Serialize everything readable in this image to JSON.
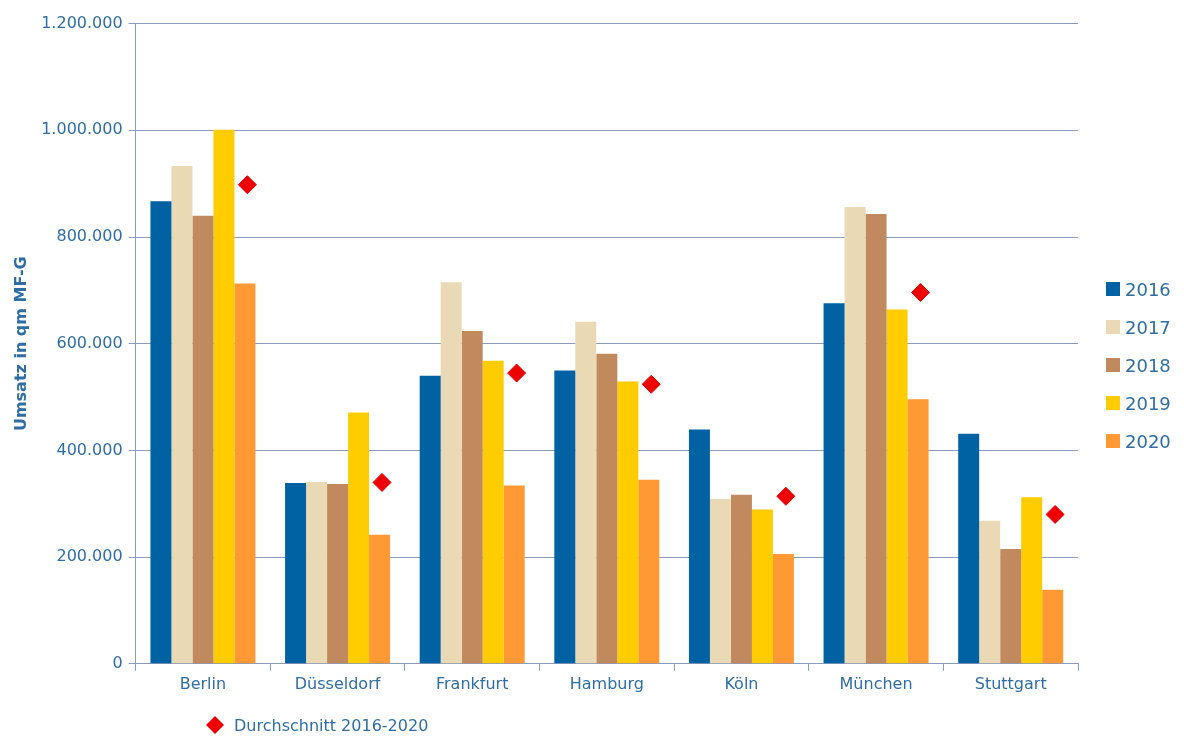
{
  "chart_data": {
    "type": "bar",
    "ylabel": "Umsatz in qm MF-G",
    "categories": [
      "Berlin",
      "Düsseldorf",
      "Frankfurt",
      "Hamburg",
      "Köln",
      "München",
      "Stuttgart"
    ],
    "series": [
      {
        "name": "2016",
        "color": "#0062a3",
        "values": [
          867000,
          339000,
          540000,
          550000,
          439000,
          676000,
          431000
        ]
      },
      {
        "name": "2017",
        "color": "#ead9b5",
        "values": [
          933000,
          341000,
          715000,
          641000,
          309000,
          856000,
          268000
        ]
      },
      {
        "name": "2018",
        "color": "#c08a5e",
        "values": [
          840000,
          337000,
          624000,
          581000,
          317000,
          843000,
          215000
        ]
      },
      {
        "name": "2019",
        "color": "#ffcc00",
        "values": [
          1001000,
          471000,
          568000,
          529000,
          289000,
          664000,
          312000
        ]
      },
      {
        "name": "2020",
        "color": "#ff9933",
        "values": [
          713000,
          242000,
          334000,
          345000,
          206000,
          496000,
          139000
        ]
      },
      {
        "name": "Durchschnitt 2016-2020",
        "type": "scatter",
        "color": "#ee0000",
        "marker": "diamond",
        "x": [
          "Berlin",
          "Düsseldorf",
          "Frankfurt",
          "Hamburg",
          "Köln",
          "München",
          "Stuttgart"
        ],
        "values": [
          898000,
          340000,
          545000,
          524000,
          314000,
          696000,
          280000
        ]
      }
    ],
    "ylim": [
      0,
      1200000
    ],
    "yticks": [
      {
        "value": 0,
        "label": "0"
      },
      {
        "value": 200000,
        "label": "200.000"
      },
      {
        "value": 400000,
        "label": "400.000"
      },
      {
        "value": 600000,
        "label": "600.000"
      },
      {
        "value": 800000,
        "label": "800.000"
      },
      {
        "value": 1000000,
        "label": "1.000.000"
      },
      {
        "value": 1200000,
        "label": "1.200.000"
      }
    ],
    "grid": "y",
    "legend": "right"
  }
}
